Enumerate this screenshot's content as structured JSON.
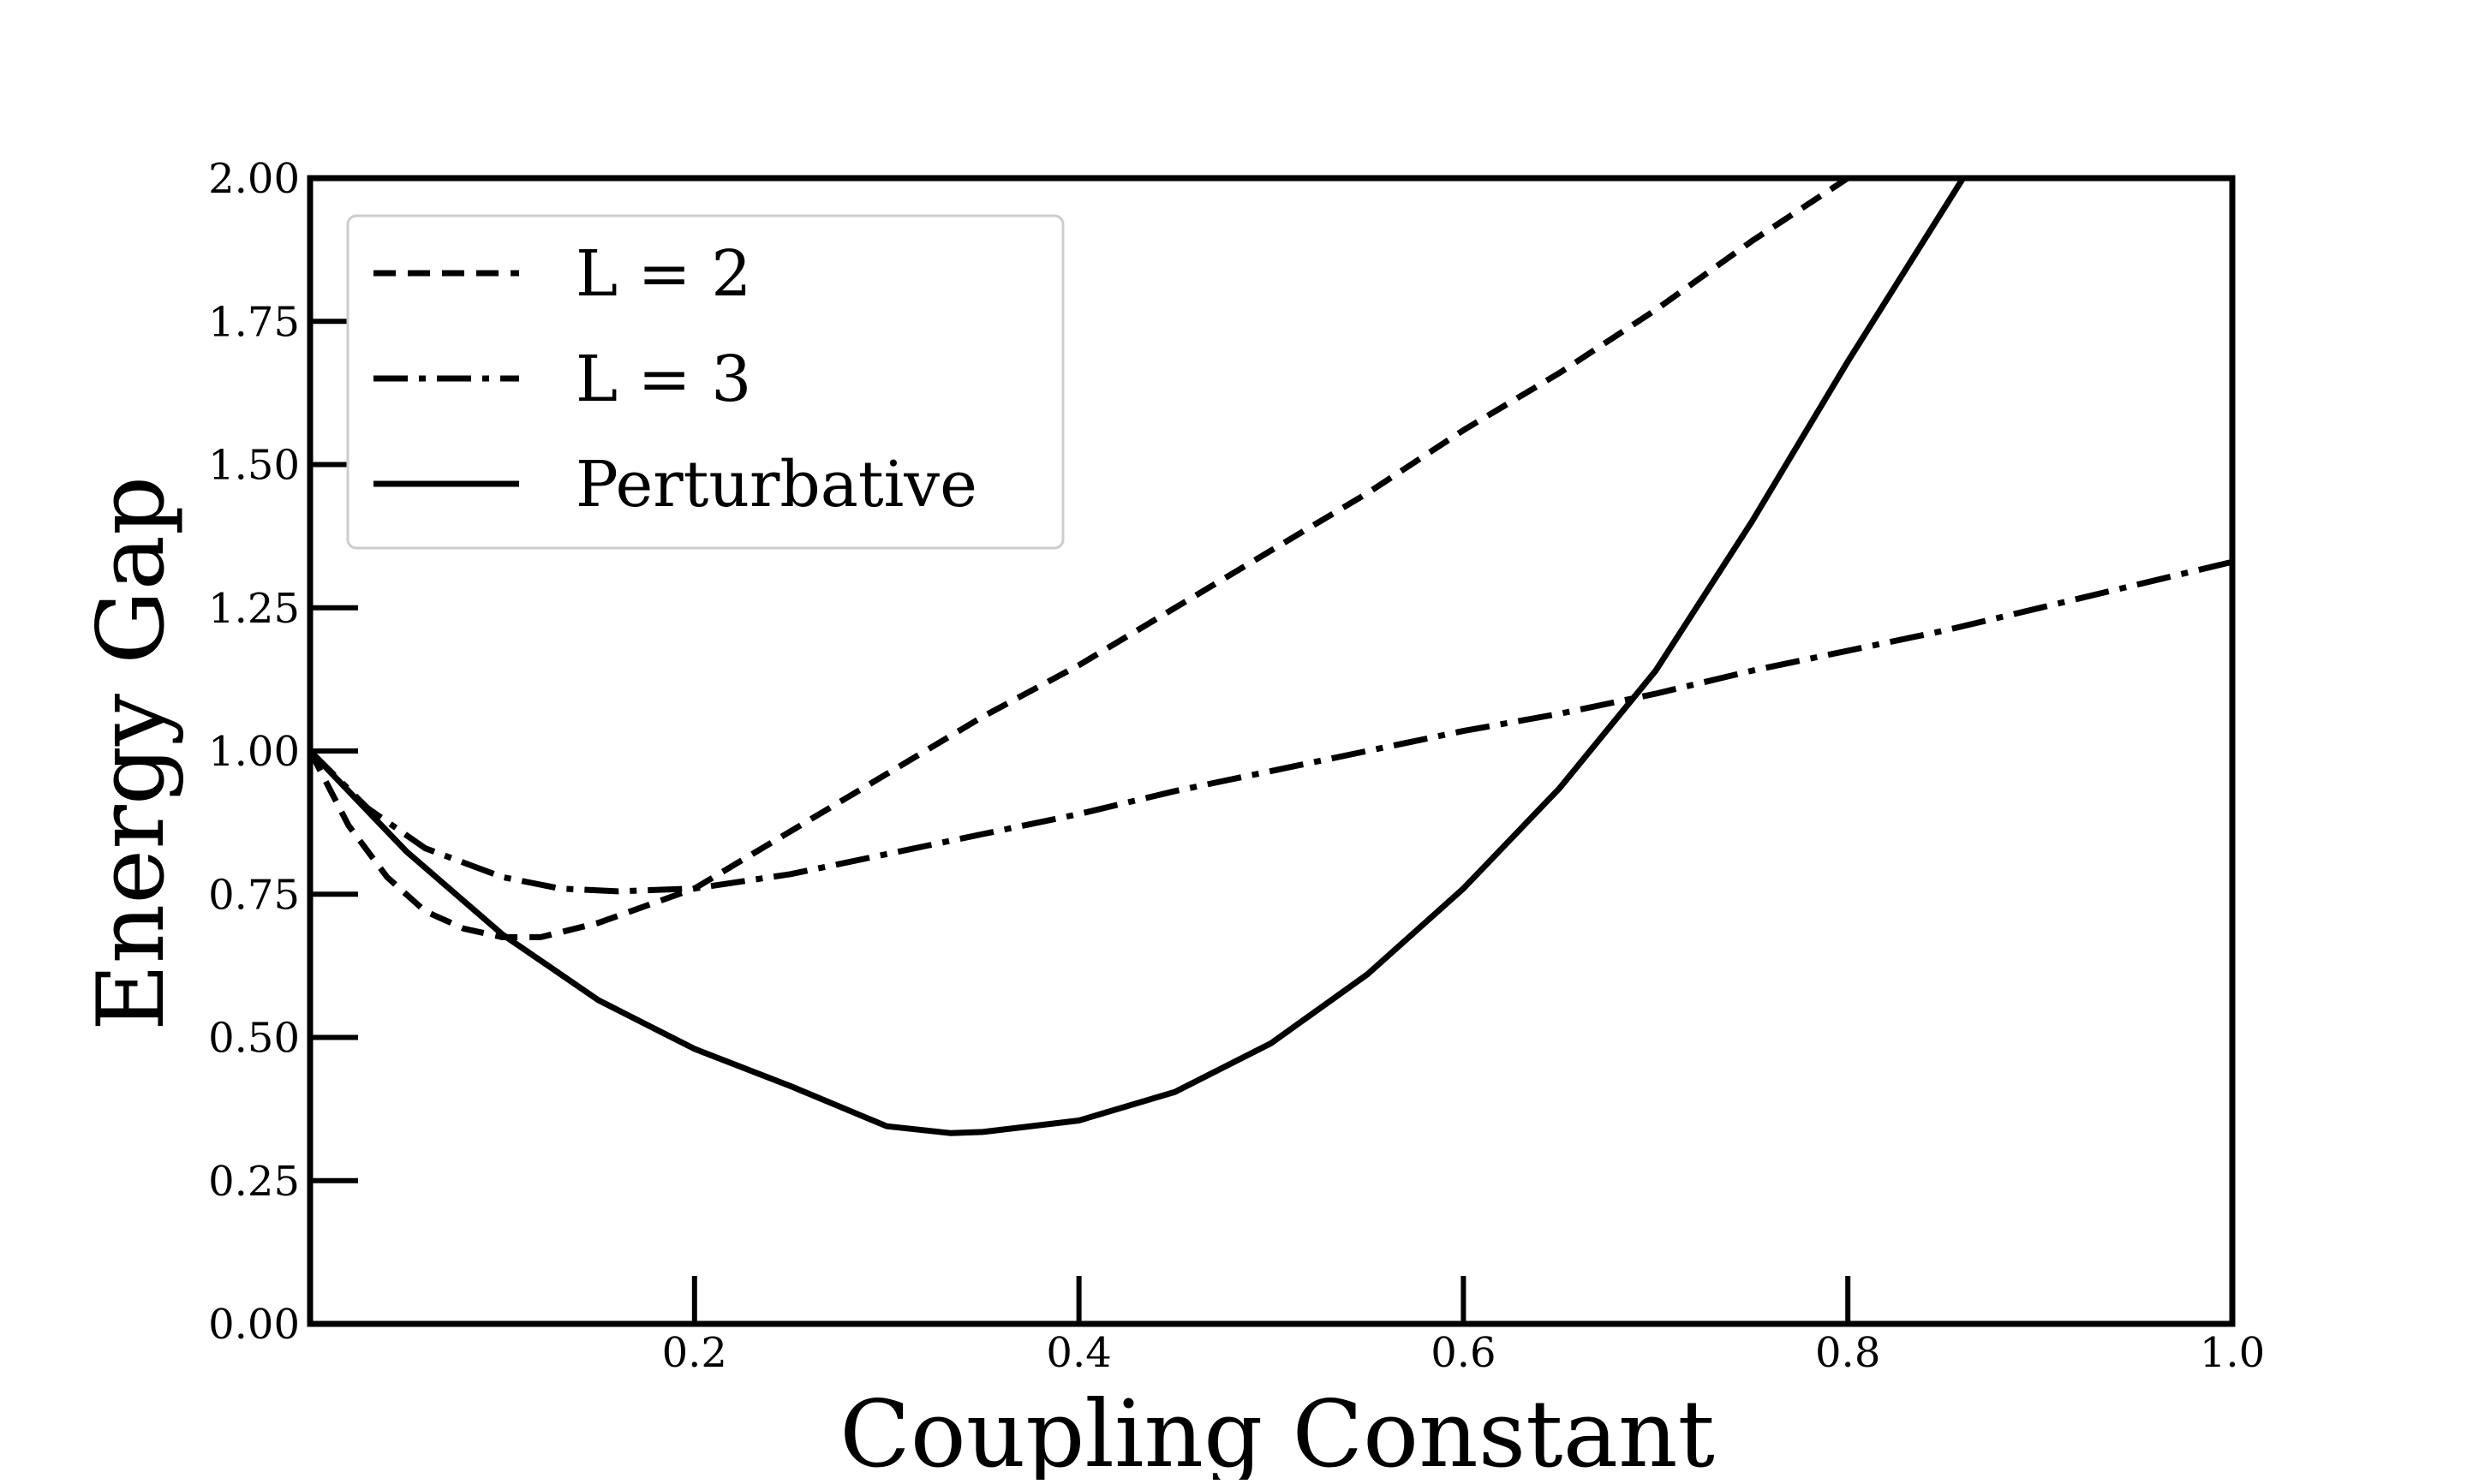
{
  "chart_data": {
    "type": "line",
    "title": "",
    "xlabel": "Coupling Constant",
    "ylabel": "Energy Gap",
    "xlim": [
      0,
      1
    ],
    "ylim": [
      0,
      2
    ],
    "x_ticks": [
      {
        "value": 0.2,
        "label": "0.2"
      },
      {
        "value": 0.4,
        "label": "0.4"
      },
      {
        "value": 0.6,
        "label": "0.6"
      },
      {
        "value": 0.8,
        "label": "0.8"
      },
      {
        "value": 1.0,
        "label": "1.0"
      }
    ],
    "y_ticks": [
      {
        "value": 0,
        "label": "0.00"
      },
      {
        "value": 0.25,
        "label": "0.25"
      },
      {
        "value": 0.5,
        "label": "0.50"
      },
      {
        "value": 0.75,
        "label": "0.75"
      },
      {
        "value": 1.0,
        "label": "1.00"
      },
      {
        "value": 1.25,
        "label": "1.25"
      },
      {
        "value": 1.5,
        "label": "1.50"
      },
      {
        "value": 1.75,
        "label": "1.75"
      },
      {
        "value": 2.0,
        "label": "2.00"
      }
    ],
    "grid": false,
    "legend_position": "top-left",
    "series": [
      {
        "name": "L = 2",
        "style": "dashed",
        "color": "#000000",
        "x": [
          0.0,
          0.02,
          0.04,
          0.06,
          0.08,
          0.1,
          0.12,
          0.15,
          0.2,
          0.25,
          0.3,
          0.35,
          0.4,
          0.45,
          0.5,
          0.55,
          0.6,
          0.65,
          0.7,
          0.75,
          0.8
        ],
        "y": [
          1.0,
          0.87,
          0.78,
          0.72,
          0.69,
          0.675,
          0.675,
          0.7,
          0.76,
          0.86,
          0.96,
          1.06,
          1.15,
          1.25,
          1.35,
          1.45,
          1.56,
          1.66,
          1.77,
          1.89,
          2.0
        ]
      },
      {
        "name": "L = 3",
        "style": "dashdot",
        "color": "#000000",
        "x": [
          0.0,
          0.03,
          0.06,
          0.1,
          0.13,
          0.16,
          0.2,
          0.25,
          0.3,
          0.35,
          0.4,
          0.45,
          0.5,
          0.55,
          0.6,
          0.65,
          0.7,
          0.75,
          0.8,
          0.85,
          0.9,
          0.95,
          1.0
        ],
        "y": [
          1.0,
          0.9,
          0.83,
          0.78,
          0.76,
          0.755,
          0.76,
          0.785,
          0.82,
          0.855,
          0.89,
          0.93,
          0.965,
          1.0,
          1.035,
          1.065,
          1.1,
          1.14,
          1.175,
          1.21,
          1.25,
          1.29,
          1.33
        ]
      },
      {
        "name": "Perturbative",
        "style": "solid",
        "color": "#000000",
        "x": [
          0.0,
          0.05,
          0.1,
          0.15,
          0.2,
          0.25,
          0.3,
          0.333,
          0.35,
          0.4,
          0.45,
          0.5,
          0.55,
          0.6,
          0.65,
          0.7,
          0.75,
          0.8,
          0.86
        ],
        "y": [
          1.0,
          0.825,
          0.68,
          0.565,
          0.48,
          0.415,
          0.345,
          0.333,
          0.335,
          0.355,
          0.405,
          0.49,
          0.61,
          0.76,
          0.935,
          1.14,
          1.4,
          1.68,
          2.0
        ]
      }
    ]
  }
}
